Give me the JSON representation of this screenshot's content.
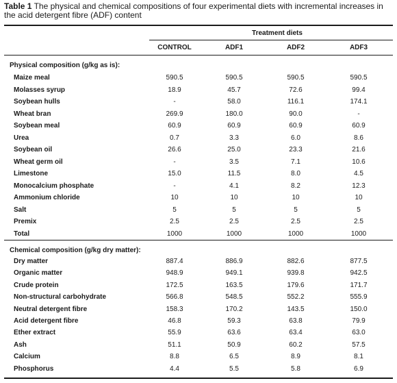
{
  "caption": {
    "label": "Table 1",
    "text": "The physical and chemical compositions of four experimental diets with incremental increases in the acid detergent fibre (ADF) content"
  },
  "header": {
    "group_label": "Treatment diets",
    "columns": [
      "CONTROL",
      "ADF1",
      "ADF2",
      "ADF3"
    ]
  },
  "physical": {
    "title": "Physical composition (g/kg as is):",
    "rows": [
      {
        "label": "Maize meal",
        "values": [
          "590.5",
          "590.5",
          "590.5",
          "590.5"
        ]
      },
      {
        "label": "Molasses syrup",
        "values": [
          "18.9",
          "45.7",
          "72.6",
          "99.4"
        ]
      },
      {
        "label": "Soybean hulls",
        "values": [
          "-",
          "58.0",
          "116.1",
          "174.1"
        ]
      },
      {
        "label": "Wheat bran",
        "values": [
          "269.9",
          "180.0",
          "90.0",
          "-"
        ]
      },
      {
        "label": "Soybean meal",
        "values": [
          "60.9",
          "60.9",
          "60.9",
          "60.9"
        ]
      },
      {
        "label": "Urea",
        "values": [
          "0.7",
          "3.3",
          "6.0",
          "8.6"
        ]
      },
      {
        "label": "Soybean oil",
        "values": [
          "26.6",
          "25.0",
          "23.3",
          "21.6"
        ]
      },
      {
        "label": "Wheat germ oil",
        "values": [
          "-",
          "3.5",
          "7.1",
          "10.6"
        ]
      },
      {
        "label": "Limestone",
        "values": [
          "15.0",
          "11.5",
          "8.0",
          "4.5"
        ]
      },
      {
        "label": "Monocalcium phosphate",
        "values": [
          "-",
          "4.1",
          "8.2",
          "12.3"
        ]
      },
      {
        "label": "Ammonium chloride",
        "values": [
          "10",
          "10",
          "10",
          "10"
        ]
      },
      {
        "label": "Salt",
        "values": [
          "5",
          "5",
          "5",
          "5"
        ]
      },
      {
        "label": "Premix",
        "values": [
          "2.5",
          "2.5",
          "2.5",
          "2.5"
        ]
      },
      {
        "label": "Total",
        "values": [
          "1000",
          "1000",
          "1000",
          "1000"
        ]
      }
    ]
  },
  "chemical": {
    "title": "Chemical composition (g/kg dry matter):",
    "rows": [
      {
        "label": "Dry matter",
        "values": [
          "887.4",
          "886.9",
          "882.6",
          "877.5"
        ]
      },
      {
        "label": "Organic matter",
        "values": [
          "948.9",
          "949.1",
          "939.8",
          "942.5"
        ]
      },
      {
        "label": "Crude protein",
        "values": [
          "172.5",
          "163.5",
          "179.6",
          "171.7"
        ]
      },
      {
        "label": "Non-structural carbohydrate",
        "values": [
          "566.8",
          "548.5",
          "552.2",
          "555.9"
        ]
      },
      {
        "label": "Neutral detergent fibre",
        "values": [
          "158.3",
          "170.2",
          "143.5",
          "150.0"
        ]
      },
      {
        "label": "Acid detergent fibre",
        "values": [
          "46.8",
          "59.3",
          "63.8",
          "79.9"
        ]
      },
      {
        "label": "Ether extract",
        "values": [
          "55.9",
          "63.6",
          "63.4",
          "63.0"
        ]
      },
      {
        "label": "Ash",
        "values": [
          "51.1",
          "50.9",
          "60.2",
          "57.5"
        ]
      },
      {
        "label": "Calcium",
        "values": [
          "8.8",
          "6.5",
          "8.9",
          "8.1"
        ]
      },
      {
        "label": "Phosphorus",
        "values": [
          "4.4",
          "5.5",
          "5.8",
          "6.9"
        ]
      }
    ]
  }
}
